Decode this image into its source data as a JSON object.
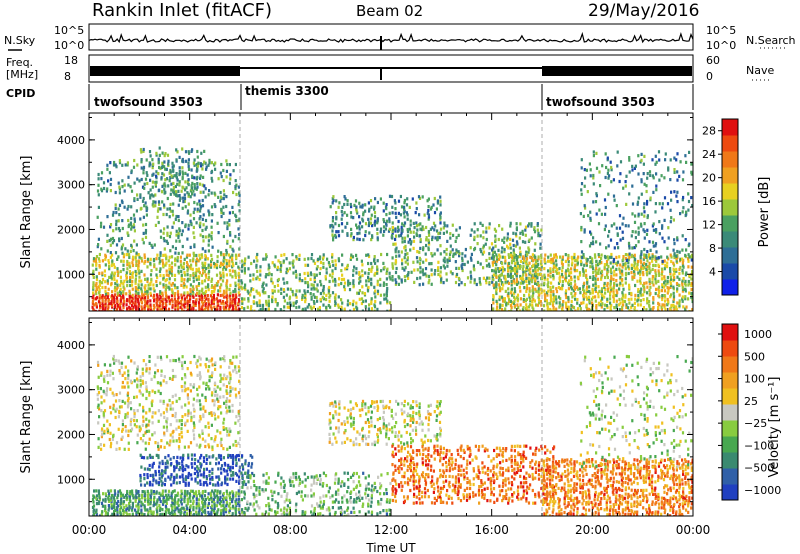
{
  "header": {
    "station": "Rankin Inlet (fitACF)",
    "beam": "Beam 02",
    "date": "29/May/2016"
  },
  "aux_panels": {
    "nsky_label": "N.Sky",
    "nsky_ticks": [
      "10^5",
      "10^0"
    ],
    "nsearch_label": "N.Search",
    "freq_label": "Freq.",
    "freq_unit": "[MHz]",
    "freq_ticks": [
      "18",
      "8"
    ],
    "nave_label": "Nave",
    "nave_ticks": [
      "60",
      "0"
    ],
    "cpid_label": "CPID",
    "cpid_segments": [
      {
        "name": "twofsound 3503",
        "start_hour": 0,
        "end_hour": 6
      },
      {
        "name": "themis 3300",
        "start_hour": 6,
        "end_hour": 18
      },
      {
        "name": "twofsound 3503",
        "start_hour": 18,
        "end_hour": 24
      }
    ]
  },
  "chart_data": [
    {
      "type": "heatmap",
      "name": "power",
      "xlabel": "Time UT",
      "ylabel": "Slant Range [km]",
      "xlim": [
        0,
        24
      ],
      "ylim": [
        180,
        4600
      ],
      "xticks": [
        "00:00",
        "04:00",
        "08:00",
        "12:00",
        "16:00",
        "20:00",
        "00:00"
      ],
      "yticks": [
        1000,
        2000,
        3000,
        4000
      ],
      "colorbar": {
        "label": "Power [dB]",
        "ticks": [
          4,
          8,
          12,
          16,
          20,
          24,
          28
        ],
        "range": [
          0,
          30
        ],
        "colors": [
          "#1020e8",
          "#1a4aa8",
          "#2e6e96",
          "#3b8a78",
          "#4aa060",
          "#9cc83a",
          "#e8d020",
          "#f0a020",
          "#f07818",
          "#ee4a10",
          "#e01010"
        ]
      },
      "scatter_regions": [
        {
          "t0": 0.1,
          "t1": 6.0,
          "r0": 200,
          "r1": 600,
          "density": 0.9,
          "level": 0.88
        },
        {
          "t0": 0.1,
          "t1": 6.0,
          "r0": 600,
          "r1": 1500,
          "density": 0.55,
          "level": 0.55
        },
        {
          "t0": 0.3,
          "t1": 6.0,
          "r0": 1500,
          "r1": 3600,
          "density": 0.2,
          "level": 0.35
        },
        {
          "t0": 2.0,
          "t1": 4.6,
          "r0": 2500,
          "r1": 3900,
          "density": 0.25,
          "level": 0.35
        },
        {
          "t0": 6.0,
          "t1": 12.0,
          "r0": 200,
          "r1": 1500,
          "density": 0.35,
          "level": 0.45
        },
        {
          "t0": 9.5,
          "t1": 14.0,
          "r0": 1800,
          "r1": 2800,
          "density": 0.3,
          "level": 0.32
        },
        {
          "t0": 12.0,
          "t1": 18.0,
          "r0": 800,
          "r1": 2200,
          "density": 0.3,
          "level": 0.4
        },
        {
          "t0": 16.0,
          "t1": 24.0,
          "r0": 200,
          "r1": 1500,
          "density": 0.55,
          "level": 0.55
        },
        {
          "t0": 19.5,
          "t1": 24.0,
          "r0": 1300,
          "r1": 3800,
          "density": 0.15,
          "level": 0.3
        }
      ]
    },
    {
      "type": "heatmap",
      "name": "velocity",
      "xlabel": "Time UT",
      "ylabel": "Slant Range [km]",
      "xlim": [
        0,
        24
      ],
      "ylim": [
        180,
        4600
      ],
      "xticks": [
        "00:00",
        "04:00",
        "08:00",
        "12:00",
        "16:00",
        "20:00",
        "00:00"
      ],
      "yticks": [
        1000,
        2000,
        3000,
        4000
      ],
      "colorbar": {
        "label": "Velocity [m s⁻¹]",
        "ticks": [
          "1000",
          "500",
          "100",
          "25",
          "−25",
          "−100",
          "−500",
          "−1000"
        ],
        "colors": [
          "#2040c0",
          "#3060a8",
          "#3a8a70",
          "#48a850",
          "#88cc40",
          "#c8c8c0",
          "#f0c020",
          "#f0a020",
          "#f07818",
          "#ee4a10",
          "#e01010"
        ]
      },
      "scatter_regions": [
        {
          "t0": 0.1,
          "t1": 6.0,
          "r0": 200,
          "r1": 800,
          "density": 0.8,
          "level": 0.28
        },
        {
          "t0": 2.0,
          "t1": 6.5,
          "r0": 900,
          "r1": 1600,
          "density": 0.45,
          "level": 0.1
        },
        {
          "t0": 0.3,
          "t1": 6.0,
          "r0": 1700,
          "r1": 3800,
          "density": 0.25,
          "level": 0.5
        },
        {
          "t0": 6.0,
          "t1": 12.0,
          "r0": 200,
          "r1": 1200,
          "density": 0.3,
          "level": 0.35
        },
        {
          "t0": 9.5,
          "t1": 14.0,
          "r0": 1800,
          "r1": 2800,
          "density": 0.3,
          "level": 0.5
        },
        {
          "t0": 12.0,
          "t1": 18.5,
          "r0": 500,
          "r1": 1800,
          "density": 0.4,
          "level": 0.78
        },
        {
          "t0": 18.0,
          "t1": 24.0,
          "r0": 200,
          "r1": 1500,
          "density": 0.55,
          "level": 0.75
        },
        {
          "t0": 19.5,
          "t1": 24.0,
          "r0": 1300,
          "r1": 3800,
          "density": 0.12,
          "level": 0.45
        }
      ]
    }
  ]
}
